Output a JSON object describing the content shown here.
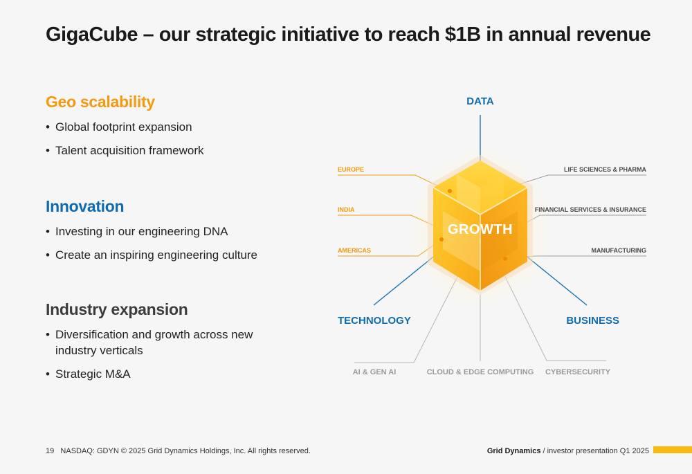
{
  "title": "GigaCube – our strategic initiative to reach $1B in annual revenue",
  "sections": [
    {
      "heading": "Geo scalability",
      "bullets": [
        "Global footprint expansion",
        "Talent acquisition framework"
      ]
    },
    {
      "heading": "Innovation",
      "bullets": [
        "Investing in our engineering DNA",
        "Create an inspiring engineering culture"
      ]
    },
    {
      "heading": "Industry expansion",
      "bullets": [
        "Diversification and growth across new industry verticals",
        "Strategic M&A"
      ]
    }
  ],
  "diagram": {
    "center": "GROWTH",
    "axes": {
      "top": "DATA",
      "left": "TECHNOLOGY",
      "right": "BUSINESS"
    },
    "geo": [
      "EUROPE",
      "INDIA",
      "AMERICAS"
    ],
    "industries": [
      "LIFE SCIENCES & PHARMA",
      "FINANCIAL SERVICES & INSURANCE",
      "MANUFACTURING"
    ],
    "tech": [
      "AI & GEN AI",
      "CLOUD & EDGE COMPUTING",
      "CYBERSECURITY"
    ],
    "colors": {
      "orange": "#f29a10",
      "blue": "#0f6bb0",
      "cube": "#ffc21a"
    }
  },
  "footer": {
    "page": "19",
    "legal": "NASDAQ: GDYN © 2025 Grid Dynamics Holdings, Inc. All rights reserved.",
    "brand": "Grid Dynamics",
    "subtitle": "/ investor presentation Q1 2025"
  }
}
